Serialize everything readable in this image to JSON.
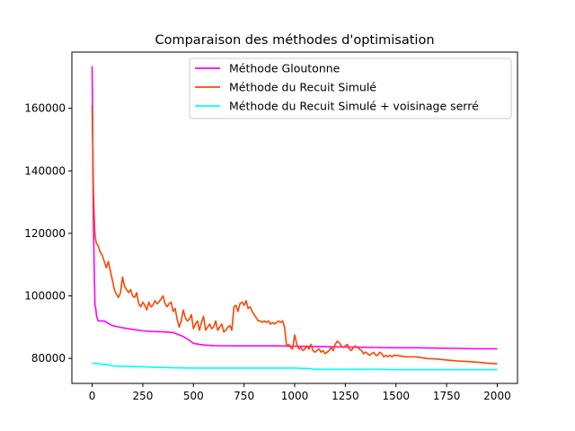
{
  "chart_data": {
    "type": "line",
    "title": "Comparaison des méthodes d'optimisation",
    "xlabel": "",
    "ylabel": "",
    "xlim": [
      -100,
      2100
    ],
    "ylim": [
      72000,
      178000
    ],
    "x_ticks": [
      0,
      250,
      500,
      750,
      1000,
      1250,
      1500,
      1750,
      2000
    ],
    "y_ticks": [
      80000,
      100000,
      120000,
      140000,
      160000
    ],
    "x_tick_labels": [
      "0",
      "250",
      "500",
      "750",
      "1000",
      "1250",
      "1500",
      "1750",
      "2000"
    ],
    "y_tick_labels": [
      "80000",
      "100000",
      "120000",
      "140000",
      "160000"
    ],
    "grid": false,
    "legend_position": "upper-right",
    "series": [
      {
        "name": "Méthode Gloutonne",
        "color": "#ff00ff",
        "x": [
          0,
          2,
          4,
          6,
          8,
          10,
          14,
          18,
          22,
          30,
          45,
          60,
          80,
          100,
          120,
          150,
          200,
          250,
          300,
          350,
          400,
          430,
          450,
          480,
          500,
          550,
          600,
          700,
          800,
          900,
          1000,
          1100,
          1200,
          1300,
          1400,
          1500,
          1600,
          1700,
          1800,
          1900,
          2000
        ],
        "y": [
          173500,
          160000,
          140000,
          125000,
          118000,
          110000,
          97000,
          96000,
          93500,
          92000,
          92000,
          92000,
          91200,
          90500,
          90200,
          89800,
          89300,
          88800,
          88600,
          88500,
          88300,
          87500,
          87000,
          85800,
          84800,
          84300,
          84100,
          84000,
          84000,
          84000,
          83900,
          83800,
          83700,
          83600,
          83500,
          83400,
          83400,
          83300,
          83200,
          83100,
          83100
        ]
      },
      {
        "name": "Méthode du Recuit Simulé",
        "color": "#ff4500",
        "x": [
          0,
          3,
          6,
          9,
          12,
          15,
          20,
          30,
          40,
          50,
          60,
          70,
          80,
          90,
          100,
          110,
          120,
          130,
          140,
          150,
          160,
          170,
          180,
          190,
          200,
          210,
          220,
          230,
          240,
          250,
          260,
          270,
          280,
          290,
          300,
          310,
          320,
          330,
          340,
          350,
          360,
          370,
          380,
          390,
          400,
          410,
          420,
          430,
          440,
          450,
          460,
          470,
          480,
          490,
          500,
          510,
          520,
          530,
          540,
          550,
          560,
          570,
          580,
          590,
          600,
          610,
          620,
          630,
          640,
          650,
          660,
          670,
          680,
          690,
          700,
          710,
          720,
          730,
          740,
          750,
          760,
          770,
          780,
          790,
          800,
          810,
          820,
          830,
          840,
          850,
          860,
          870,
          880,
          890,
          900,
          910,
          920,
          930,
          940,
          950,
          960,
          970,
          980,
          990,
          1000,
          1010,
          1020,
          1030,
          1040,
          1050,
          1060,
          1070,
          1080,
          1090,
          1100,
          1110,
          1120,
          1130,
          1140,
          1150,
          1160,
          1170,
          1180,
          1190,
          1200,
          1210,
          1220,
          1230,
          1240,
          1250,
          1260,
          1270,
          1280,
          1290,
          1300,
          1310,
          1320,
          1330,
          1340,
          1350,
          1360,
          1370,
          1380,
          1390,
          1400,
          1410,
          1420,
          1430,
          1440,
          1450,
          1460,
          1470,
          1480,
          1490,
          1500,
          1550,
          1600,
          1650,
          1700,
          1750,
          1800,
          1850,
          1900,
          1950,
          2000
        ],
        "y": [
          161000,
          150000,
          135000,
          128000,
          122000,
          119000,
          117000,
          116000,
          114000,
          113000,
          111000,
          109000,
          111000,
          108000,
          105000,
          102000,
          100500,
          99500,
          101000,
          106000,
          103000,
          102000,
          101000,
          102000,
          100000,
          99500,
          101000,
          97500,
          96500,
          98000,
          97000,
          95500,
          98000,
          96500,
          97000,
          98500,
          97500,
          98000,
          99000,
          100000,
          97500,
          96500,
          97500,
          98000,
          95000,
          96000,
          92500,
          90000,
          92000,
          95500,
          93000,
          92000,
          92500,
          94000,
          89500,
          91000,
          92000,
          89000,
          91500,
          93500,
          89000,
          90000,
          91000,
          89500,
          90000,
          92000,
          89000,
          90000,
          91000,
          88500,
          89000,
          90000,
          90500,
          89000,
          96500,
          97000,
          95000,
          97500,
          98000,
          97000,
          98500,
          96000,
          96500,
          95000,
          94000,
          93000,
          92000,
          92000,
          91500,
          92000,
          91500,
          92000,
          91000,
          91500,
          91000,
          91500,
          92000,
          91500,
          92000,
          90000,
          84000,
          84500,
          83500,
          83000,
          87500,
          84500,
          83000,
          83500,
          82500,
          83000,
          84000,
          83000,
          84500,
          82500,
          82000,
          82500,
          83000,
          82000,
          82500,
          81500,
          82000,
          82500,
          83500,
          82500,
          84500,
          85500,
          85000,
          84000,
          83500,
          84000,
          84500,
          83000,
          82500,
          83500,
          84000,
          83500,
          83000,
          82500,
          81500,
          82000,
          81500,
          81000,
          81500,
          82000,
          81000,
          81000,
          82000,
          81500,
          80500,
          81000,
          80500,
          81000,
          80500,
          81000,
          81000,
          80500,
          80500,
          80000,
          79800,
          79500,
          79200,
          79000,
          78800,
          78500,
          78300
        ]
      },
      {
        "name": "Méthode du Recuit Simulé + voisinage serré",
        "color": "#00ffff",
        "x": [
          0,
          20,
          40,
          60,
          80,
          90,
          100,
          150,
          200,
          300,
          400,
          500,
          600,
          700,
          800,
          900,
          1000,
          1050,
          1080,
          1090,
          1100,
          1200,
          1300,
          1400,
          1500,
          1600,
          1700,
          1800,
          1900,
          2000
        ],
        "y": [
          78500,
          78400,
          78200,
          78100,
          78000,
          77800,
          77600,
          77500,
          77400,
          77200,
          77000,
          76900,
          76900,
          76900,
          76900,
          76900,
          76900,
          76800,
          76700,
          76500,
          76500,
          76500,
          76500,
          76500,
          76400,
          76400,
          76400,
          76400,
          76400,
          76400
        ]
      }
    ]
  }
}
